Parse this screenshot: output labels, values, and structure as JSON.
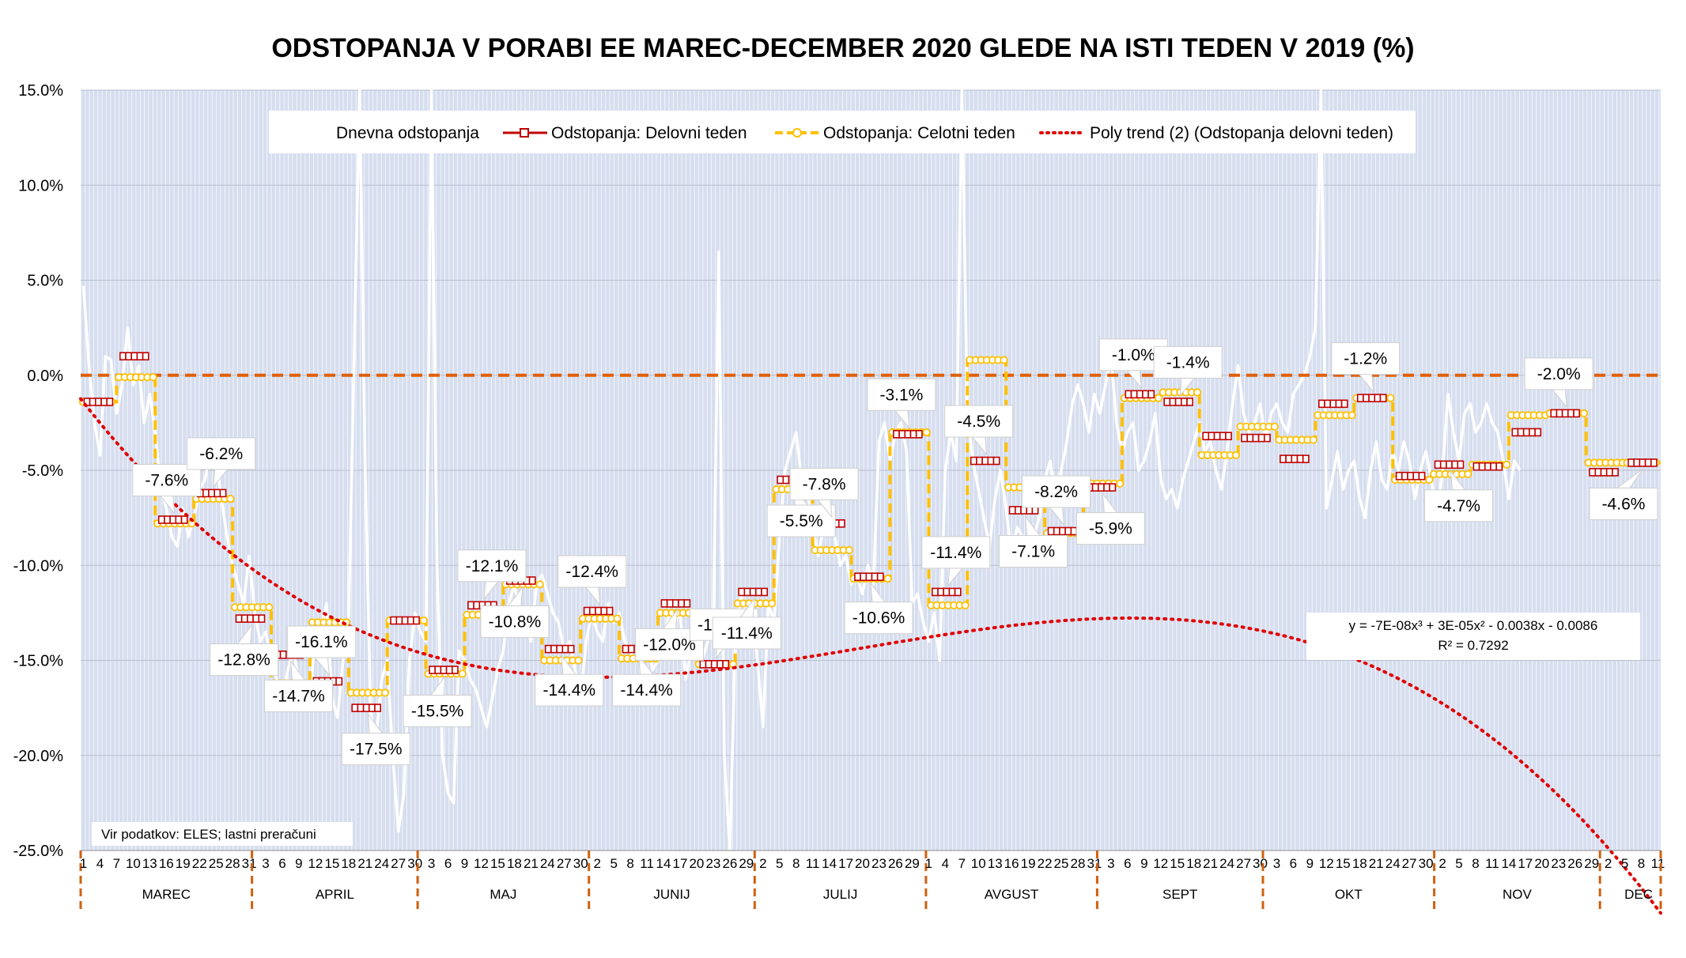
{
  "chart_data": {
    "type": "line",
    "title": "ODSTOPANJA V PORABI EE MAREC-DECEMBER 2020 GLEDE NA ISTI TEDEN V 2019  (%)",
    "y_axis": {
      "min": -25,
      "max": 15,
      "step": 5,
      "tick_labels": [
        "15.0%",
        "10.0%",
        "5.0%",
        "0.0%",
        "-5.0%",
        "-10.0%",
        "-15.0%",
        "-20.0%",
        "-25.0%"
      ]
    },
    "x_axis": {
      "start": "1 March 2020",
      "months": [
        {
          "name": "MAREC",
          "day_labels": [
            "1",
            "4",
            "7",
            "10",
            "13",
            "16",
            "19",
            "22",
            "25",
            "28",
            "31"
          ]
        },
        {
          "name": "APRIL",
          "day_labels": [
            "3",
            "6",
            "9",
            "12",
            "15",
            "18",
            "21",
            "24",
            "27",
            "30"
          ]
        },
        {
          "name": "MAJ",
          "day_labels": [
            "3",
            "6",
            "9",
            "12",
            "15",
            "18",
            "21",
            "24",
            "27",
            "30"
          ]
        },
        {
          "name": "JUNIJ",
          "day_labels": [
            "2",
            "5",
            "8",
            "11",
            "14",
            "17",
            "20",
            "23",
            "26",
            "29"
          ]
        },
        {
          "name": "JULIJ",
          "day_labels": [
            "2",
            "5",
            "8",
            "11",
            "14",
            "17",
            "20",
            "23",
            "26",
            "29"
          ]
        },
        {
          "name": "AVGUST",
          "day_labels": [
            "1",
            "4",
            "7",
            "10",
            "13",
            "16",
            "19",
            "22",
            "25",
            "28",
            "31"
          ]
        },
        {
          "name": "SEPT",
          "day_labels": [
            "3",
            "6",
            "9",
            "12",
            "15",
            "18",
            "21",
            "24",
            "27",
            "30"
          ]
        },
        {
          "name": "OKT",
          "day_labels": [
            "3",
            "6",
            "9",
            "12",
            "15",
            "18",
            "21",
            "24",
            "27",
            "30"
          ]
        },
        {
          "name": "NOV",
          "day_labels": [
            "2",
            "5",
            "8",
            "11",
            "14",
            "17",
            "20",
            "23",
            "26",
            "29"
          ]
        },
        {
          "name": "DEC",
          "day_labels": [
            "2",
            "5",
            "8",
            "11"
          ]
        }
      ]
    },
    "legend": {
      "position": "top",
      "entries": [
        "Dnevna odstopanja",
        "Odstopanja: Delovni teden",
        "Odstopanja: Celotni teden",
        "Poly trend (2) (Odstopanja delovni teden)"
      ]
    },
    "series": [
      {
        "name": "Dnevna odstopanja",
        "color": "#ffffff",
        "values": [
          4.7,
          0.5,
          -2.5,
          -4.2,
          1.0,
          0.8,
          -2.0,
          -0.5,
          2.5,
          -0.5,
          0.5,
          -2.5,
          -1.0,
          -3.0,
          -6.0,
          -7.0,
          -8.5,
          -9.0,
          -7.0,
          -8.5,
          -7.5,
          -6.0,
          -5.5,
          -4.0,
          -4.5,
          -6.5,
          -8.5,
          -10.0,
          -11.0,
          -12.0,
          -9.5,
          -12.5,
          -14.0,
          -13.5,
          -15.0,
          -16.0,
          -17.0,
          -15.5,
          -14.5,
          -16.0,
          -17.0,
          -16.5,
          -14.0,
          -13.5,
          -12.0,
          -17.0,
          -18.0,
          -15.0,
          -13.0,
          1.0,
          16.0,
          -5.0,
          -18.0,
          -19.0,
          -16.0,
          -15.0,
          -20.0,
          -24.0,
          -22.0,
          -15.0,
          -12.5,
          -13.5,
          -14.0,
          16.0,
          -10.0,
          -20.0,
          -22.0,
          -22.5,
          -14.5,
          -15.0,
          -16.0,
          -16.5,
          -17.5,
          -18.5,
          -17.0,
          -15.5,
          -14.5,
          -12.0,
          -11.0,
          -12.5,
          -13.0,
          -14.0,
          -11.0,
          -10.5,
          -11.5,
          -12.5,
          -13.0,
          -14.5,
          -14.0,
          -15.5,
          -17.0,
          -14.0,
          -12.5,
          -13.5,
          -14.0,
          -12.0,
          -13.0,
          -12.5,
          -14.0,
          -14.5,
          -15.0,
          -14.0,
          -13.5,
          -15.5,
          -15.0,
          -14.0,
          -12.5,
          -13.0,
          -12.5,
          -16.0,
          -14.5,
          -13.0,
          -15.0,
          -14.0,
          -13.5,
          6.5,
          -20.0,
          -25.0,
          -14.0,
          -11.5,
          -12.5,
          -12.0,
          -15.0,
          -18.5,
          -12.0,
          -13.0,
          -8.5,
          -5.0,
          -4.0,
          -3.0,
          -5.5,
          -6.0,
          -8.0,
          -9.5,
          -8.0,
          -7.5,
          -8.5,
          -10.0,
          -9.5,
          -11.0,
          -10.5,
          -11.5,
          -10.0,
          -11.0,
          -3.5,
          -2.5,
          -4.5,
          -3.0,
          -2.5,
          -4.0,
          -12.0,
          -11.5,
          -13.0,
          -14.0,
          -12.5,
          -15.0,
          -5.0,
          -3.0,
          -4.5,
          16.0,
          -2.0,
          -4.5,
          -6.0,
          -7.5,
          -9.0,
          -6.5,
          -5.0,
          -7.0,
          -9.5,
          -8.0,
          -8.5,
          -9.0,
          -8.5,
          -7.5,
          -5.5,
          -4.5,
          -6.5,
          -5.0,
          -3.5,
          -1.5,
          -0.5,
          -1.5,
          -3.0,
          -1.0,
          -2.0,
          -0.5,
          1.0,
          -2.5,
          -4.0,
          -3.0,
          -2.5,
          -5.0,
          -4.5,
          -3.5,
          -2.0,
          -5.5,
          -6.5,
          -6.0,
          -7.0,
          -5.5,
          -4.5,
          -3.5,
          -2.5,
          -4.0,
          -3.5,
          -5.0,
          -6.0,
          -4.0,
          -1.5,
          0.5,
          -2.0,
          -3.0,
          -2.5,
          -1.5,
          -3.5,
          -2.0,
          -1.5,
          -2.5,
          -3.0,
          -1.0,
          -0.5,
          0.0,
          1.0,
          2.5,
          16.0,
          -7.0,
          -5.5,
          -4.0,
          -6.0,
          -5.0,
          -4.5,
          -6.5,
          -7.5,
          -5.0,
          -3.5,
          -5.5,
          -6.0,
          -4.0,
          -5.0,
          -3.5,
          -4.5,
          -6.5,
          -5.0,
          -4.0,
          -5.5,
          -7.5,
          -5.0,
          -1.0,
          -3.0,
          -4.5,
          -2.0,
          -1.5,
          -3.0,
          -2.5,
          -1.5,
          -2.5,
          -3.0,
          -4.5,
          -6.5,
          -4.5,
          -5.0
        ]
      },
      {
        "name": "Odstopanja: Delovni teden",
        "color": "#c00000",
        "weekly_values": [
          -1.4,
          1.0,
          -7.6,
          -6.2,
          -12.8,
          -14.7,
          -16.1,
          -17.5,
          -12.9,
          -15.5,
          -12.1,
          -10.8,
          -14.4,
          -12.4,
          -14.4,
          -12.0,
          -15.2,
          -11.4,
          -5.5,
          -7.8,
          -10.6,
          -3.1,
          -11.4,
          -4.5,
          -7.1,
          -8.2,
          -5.9,
          -1.0,
          -1.4,
          -3.2,
          -3.3,
          -4.4,
          -1.5,
          -1.2,
          -5.3,
          -4.7,
          -4.8,
          -3.0,
          -2.0,
          -5.1,
          -4.6
        ]
      },
      {
        "name": "Odstopanja: Celotni teden",
        "color": "#ffc000",
        "weekly_values": [
          -1.4,
          -0.1,
          -7.8,
          -6.5,
          -12.2,
          -16.2,
          -13.0,
          -16.7,
          -12.9,
          -15.7,
          -12.6,
          -11.0,
          -15.0,
          -12.8,
          -14.9,
          -12.5,
          -15.2,
          -12.0,
          -6.0,
          -9.2,
          -10.7,
          -3.0,
          -12.1,
          0.8,
          -5.9,
          -8.3,
          -5.7,
          -1.2,
          -0.9,
          -4.2,
          -2.7,
          -3.4,
          -2.1,
          -1.2,
          -5.5,
          -5.2,
          -4.7,
          -2.1,
          -2.0,
          -4.6,
          -4.6
        ]
      },
      {
        "name": "Poly trend (2) (Odstopanja delovni teden)",
        "color": "#e00000",
        "equation": {
          "a3": -7e-08,
          "a2": 3e-05,
          "a1": -0.0038,
          "a0": -0.0086
        }
      }
    ],
    "data_labels": [
      {
        "week": 2,
        "text": "-7.6%"
      },
      {
        "week": 3,
        "text": "-6.2%"
      },
      {
        "week": 4,
        "text": "-12.8%"
      },
      {
        "week": 5,
        "text": "-14.7%"
      },
      {
        "week": 6,
        "text": "-16.1%"
      },
      {
        "week": 7,
        "text": "-17.5%"
      },
      {
        "week": 9,
        "text": "-15.5%"
      },
      {
        "week": 10,
        "text": "-12.1%"
      },
      {
        "week": 11,
        "text": "-10.8%"
      },
      {
        "week": 12,
        "text": "-14.4%"
      },
      {
        "week": 13,
        "text": "-12.4%"
      },
      {
        "week": 14,
        "text": "-14.4%"
      },
      {
        "week": 15,
        "text": "-12.0%"
      },
      {
        "week": 16,
        "text": "-15.2%"
      },
      {
        "week": 17,
        "text": "-11.4%"
      },
      {
        "week": 18,
        "text": "-5.5%"
      },
      {
        "week": 19,
        "text": "-7.8%"
      },
      {
        "week": 20,
        "text": "-10.6%"
      },
      {
        "week": 21,
        "text": "-3.1%"
      },
      {
        "week": 22,
        "text": "-11.4%"
      },
      {
        "week": 23,
        "text": "-4.5%"
      },
      {
        "week": 24,
        "text": "-7.1%"
      },
      {
        "week": 25,
        "text": "-8.2%"
      },
      {
        "week": 26,
        "text": "-5.9%"
      },
      {
        "week": 27,
        "text": "-1.0%"
      },
      {
        "week": 28,
        "text": "-1.4%"
      },
      {
        "week": 33,
        "text": "-1.2%"
      },
      {
        "week": 35,
        "text": "-4.7%"
      },
      {
        "week": 38,
        "text": "-2.0%"
      },
      {
        "week": 40,
        "text": "-4.6%"
      }
    ],
    "trend_equation": "y = -7E-08x³ + 3E-05x² - 0.0038x - 0.0086",
    "r_squared": "R² = 0.7292",
    "reference_line": {
      "value": 0.0,
      "color": "#e0600a"
    },
    "grid": true,
    "background_color": "#d6deef",
    "source_note": "Vir podatkov: ELES; lastni preračuni"
  }
}
